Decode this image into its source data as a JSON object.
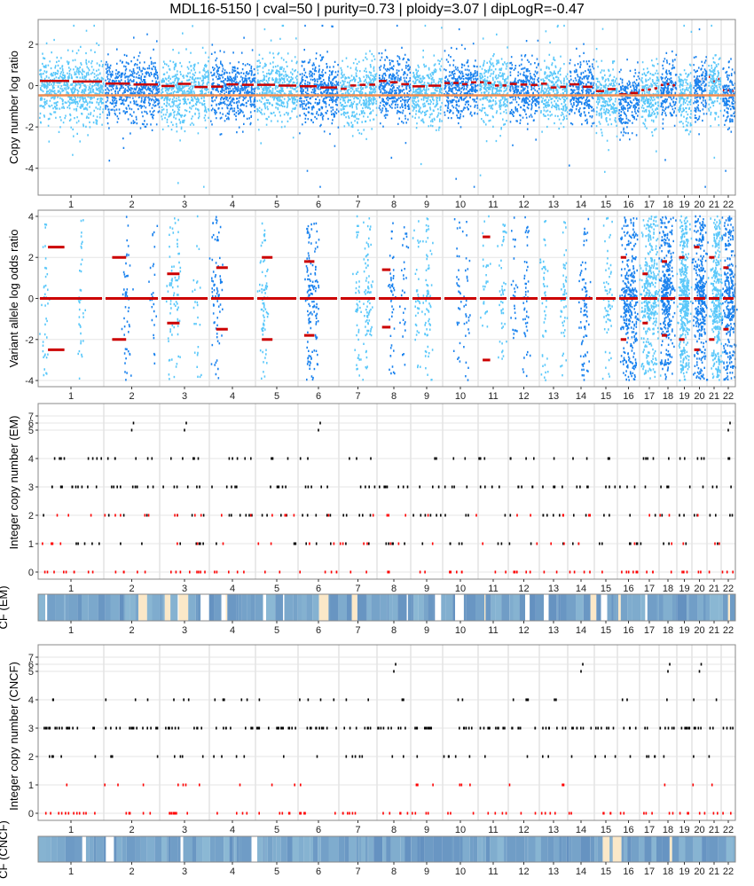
{
  "title": "MDL16-5150 | cval=50 | purity=0.73 | ploidy=3.07 | dipLogR=-0.47",
  "colors": {
    "chrom_light": "#5ac8fa",
    "chrom_dark": "#1a82ee",
    "segment": "#cc0000",
    "diplogr_line": "#f28c4e",
    "cf_fill": "#6d96c4",
    "cf_missing": "#fbe8c8",
    "grid": "#e5e5e5",
    "panel_border": "#888888",
    "total_cn": "#000000",
    "minor_cn": "#ff0000"
  },
  "chart_data": [
    {
      "type": "scatter",
      "panel": "cnlr",
      "ylabel": "Copy number log ratio",
      "yticks": [
        -4,
        -2,
        0,
        2
      ],
      "ylim": [
        -5.3,
        3.2
      ],
      "dipLogR": -0.47,
      "x_tick_labels": [
        "1",
        "2",
        "3",
        "4",
        "5",
        "6",
        "7",
        "8",
        "9",
        "10",
        "11",
        "12",
        "13",
        "14",
        "15",
        "16",
        "17",
        "18",
        "19",
        "20",
        "21",
        "22"
      ],
      "chromosomes": [
        "1",
        "2",
        "3",
        "4",
        "5",
        "6",
        "7",
        "8",
        "9",
        "10",
        "11",
        "12",
        "13",
        "14",
        "15",
        "16",
        "17",
        "18",
        "19",
        "20",
        "21",
        "22"
      ],
      "segment_means": [
        0.1,
        0.1,
        0.0,
        0.05,
        0.1,
        0.0,
        -0.1,
        0.2,
        -0.1,
        0.2,
        0.1,
        0.0,
        0.0,
        0.05,
        -0.3,
        -0.4,
        -0.2,
        0.1,
        -0.3,
        0.2,
        0.3,
        -0.2
      ]
    },
    {
      "type": "scatter",
      "panel": "valor",
      "ylabel": "Variant allele log odds ratio",
      "yticks": [
        -4,
        -2,
        0,
        2,
        4
      ],
      "ylim": [
        -4.3,
        4.3
      ],
      "chromosomes": [
        "1",
        "2",
        "3",
        "4",
        "5",
        "6",
        "7",
        "8",
        "9",
        "10",
        "11",
        "12",
        "13",
        "14",
        "15",
        "16",
        "17",
        "18",
        "19",
        "20",
        "21",
        "22"
      ],
      "segment_offsets": [
        2.5,
        2.0,
        1.2,
        1.5,
        2.0,
        1.8,
        0.0,
        1.4,
        0.0,
        0.0,
        3.0,
        0.0,
        0.0,
        0.0,
        0.0,
        2.0,
        1.2,
        1.8,
        2.0,
        2.5,
        2.0,
        1.5
      ]
    },
    {
      "type": "scatter",
      "panel": "cn_em",
      "ylabel": "Integer copy number (EM)",
      "yticks": [
        0,
        1,
        2,
        3,
        4,
        5,
        6,
        7
      ]
    },
    {
      "type": "heatmap",
      "panel": "cf_em",
      "ylabel": "CF (EM)"
    },
    {
      "type": "scatter",
      "panel": "cn_cncf",
      "ylabel": "Integer copy number (CNCF)",
      "yticks": [
        0,
        1,
        2,
        3,
        4,
        5,
        6,
        7
      ]
    },
    {
      "type": "heatmap",
      "panel": "cf_cncf",
      "ylabel": "CF (CNCF)"
    }
  ]
}
